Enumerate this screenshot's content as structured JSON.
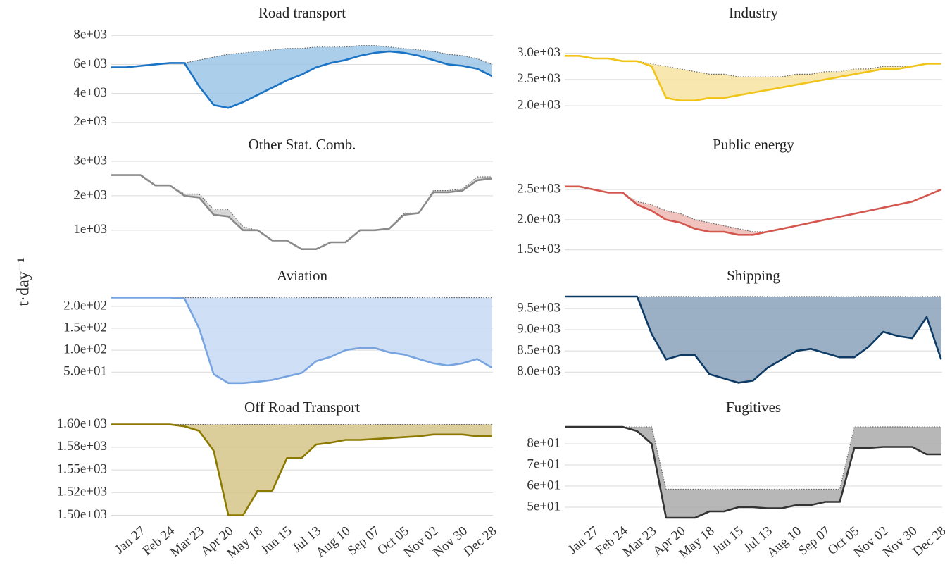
{
  "ylabel": "t·day⁻¹",
  "chart_data": [
    {
      "type": "line",
      "title": "Road transport",
      "color": "#1a73c4",
      "fill": "#9cc7e8",
      "x": [
        1,
        15,
        29,
        43,
        57,
        71,
        85,
        99,
        113,
        127,
        141,
        155,
        169,
        183,
        197,
        211,
        225,
        239,
        253,
        267,
        281,
        295,
        309,
        323,
        337,
        351,
        365
      ],
      "values": [
        5800,
        5800,
        5900,
        6000,
        6100,
        6100,
        4500,
        3200,
        3000,
        3400,
        3900,
        4400,
        4900,
        5300,
        5800,
        6100,
        6300,
        6600,
        6800,
        6900,
        6800,
        6600,
        6300,
        6000,
        5900,
        5700,
        5200
      ],
      "baseline_values": [
        5800,
        5800,
        5900,
        6000,
        6100,
        6100,
        6300,
        6500,
        6700,
        6800,
        6900,
        7000,
        7100,
        7100,
        7200,
        7200,
        7200,
        7300,
        7300,
        7200,
        7100,
        7000,
        6900,
        6700,
        6600,
        6400,
        6000
      ],
      "xlim": [
        1,
        366
      ],
      "ylim": [
        1700,
        8400
      ],
      "yticks": [
        {
          "value": 2000,
          "label": "2e+03"
        },
        {
          "value": 4000,
          "label": "4e+03"
        },
        {
          "value": 6000,
          "label": "6e+03"
        },
        {
          "value": 8000,
          "label": "8e+03"
        }
      ],
      "grid": true
    },
    {
      "type": "line",
      "title": "Industry",
      "color": "#f0c419",
      "fill": "#f7e3a0",
      "x": [
        1,
        15,
        29,
        43,
        57,
        71,
        85,
        99,
        113,
        127,
        141,
        155,
        169,
        183,
        197,
        211,
        225,
        239,
        253,
        267,
        281,
        295,
        309,
        323,
        337,
        351,
        365
      ],
      "values": [
        2950,
        2950,
        2900,
        2900,
        2850,
        2850,
        2750,
        2150,
        2100,
        2100,
        2150,
        2150,
        2200,
        2250,
        2300,
        2350,
        2400,
        2450,
        2500,
        2550,
        2600,
        2650,
        2700,
        2700,
        2750,
        2800,
        2800
      ],
      "baseline_values": [
        2950,
        2950,
        2900,
        2900,
        2850,
        2850,
        2800,
        2750,
        2700,
        2650,
        2600,
        2600,
        2550,
        2550,
        2550,
        2550,
        2600,
        2600,
        2650,
        2650,
        2700,
        2700,
        2750,
        2750,
        2750,
        2800,
        2800
      ],
      "xlim": [
        1,
        366
      ],
      "ylim": [
        1600,
        3450
      ],
      "yticks": [
        {
          "value": 2000,
          "label": "2.0e+03"
        },
        {
          "value": 2500,
          "label": "2.5e+03"
        },
        {
          "value": 3000,
          "label": "3.0e+03"
        }
      ],
      "grid": true
    },
    {
      "type": "line",
      "title": "Other Stat. Comb.",
      "color": "#8a8a8a",
      "fill": "#d0d0d0",
      "x": [
        1,
        15,
        29,
        43,
        57,
        71,
        85,
        99,
        113,
        127,
        141,
        155,
        169,
        183,
        197,
        211,
        225,
        239,
        253,
        267,
        281,
        295,
        309,
        323,
        337,
        351,
        365
      ],
      "values": [
        2600,
        2600,
        2600,
        2300,
        2300,
        2000,
        1950,
        1450,
        1400,
        1000,
        1000,
        700,
        700,
        450,
        450,
        650,
        650,
        1000,
        1000,
        1050,
        1450,
        1500,
        2100,
        2100,
        2150,
        2450,
        2500
      ],
      "baseline_values": [
        2600,
        2600,
        2600,
        2300,
        2300,
        2050,
        2050,
        1600,
        1600,
        1100,
        1000,
        700,
        700,
        450,
        450,
        650,
        650,
        1000,
        1000,
        1050,
        1500,
        1500,
        2150,
        2150,
        2200,
        2550,
        2550
      ],
      "xlim": [
        1,
        366
      ],
      "ylim": [
        220,
        3020
      ],
      "yticks": [
        {
          "value": 1000,
          "label": "1e+03"
        },
        {
          "value": 2000,
          "label": "2e+03"
        },
        {
          "value": 3000,
          "label": "3e+03"
        }
      ],
      "grid": true
    },
    {
      "type": "line",
      "title": "Public energy",
      "color": "#d4574f",
      "fill": "#eeb9b4",
      "x": [
        1,
        15,
        29,
        43,
        57,
        71,
        85,
        99,
        113,
        127,
        141,
        155,
        169,
        183,
        197,
        211,
        225,
        239,
        253,
        267,
        281,
        295,
        309,
        323,
        337,
        351,
        365
      ],
      "values": [
        2550,
        2550,
        2500,
        2450,
        2450,
        2250,
        2150,
        2000,
        1950,
        1850,
        1800,
        1800,
        1750,
        1750,
        1800,
        1850,
        1900,
        1950,
        2000,
        2050,
        2100,
        2150,
        2200,
        2250,
        2300,
        2400,
        2500
      ],
      "baseline_values": [
        2550,
        2550,
        2500,
        2450,
        2450,
        2300,
        2250,
        2150,
        2100,
        2000,
        1950,
        1900,
        1850,
        1800,
        1800,
        1850,
        1900,
        1950,
        2000,
        2050,
        2100,
        2150,
        2200,
        2250,
        2300,
        2400,
        2500
      ],
      "xlim": [
        1,
        366
      ],
      "ylim": [
        1380,
        2980
      ],
      "yticks": [
        {
          "value": 1500,
          "label": "1.5e+03"
        },
        {
          "value": 2000,
          "label": "2.0e+03"
        },
        {
          "value": 2500,
          "label": "2.5e+03"
        }
      ],
      "grid": true
    },
    {
      "type": "line",
      "title": "Aviation",
      "color": "#77a4e0",
      "fill": "#c7d9f3",
      "x": [
        1,
        15,
        29,
        43,
        57,
        71,
        85,
        99,
        113,
        127,
        141,
        155,
        169,
        183,
        197,
        211,
        225,
        239,
        253,
        267,
        281,
        295,
        309,
        323,
        337,
        351,
        365
      ],
      "values": [
        220,
        220,
        220,
        220,
        220,
        218,
        150,
        45,
        25,
        25,
        28,
        32,
        40,
        48,
        75,
        85,
        100,
        105,
        105,
        95,
        90,
        80,
        70,
        65,
        70,
        80,
        60
      ],
      "baseline_values": [
        220,
        220,
        220,
        220,
        220,
        220,
        220,
        220,
        220,
        220,
        220,
        220,
        220,
        220,
        220,
        220,
        220,
        220,
        220,
        220,
        220,
        220,
        220,
        220,
        220,
        220,
        220
      ],
      "xlim": [
        1,
        366
      ],
      "ylim": [
        15,
        232
      ],
      "yticks": [
        {
          "value": 50,
          "label": "5.0e+01"
        },
        {
          "value": 100,
          "label": "1.0e+02"
        },
        {
          "value": 150,
          "label": "1.5e+02"
        },
        {
          "value": 200,
          "label": "2.0e+02"
        }
      ],
      "grid": true
    },
    {
      "type": "line",
      "title": "Shipping",
      "color": "#0c3a64",
      "fill": "#8aa2ba",
      "x": [
        1,
        15,
        29,
        43,
        57,
        71,
        85,
        99,
        113,
        127,
        141,
        155,
        169,
        183,
        197,
        211,
        225,
        239,
        253,
        267,
        281,
        295,
        309,
        323,
        337,
        351,
        365
      ],
      "values": [
        9780,
        9780,
        9780,
        9780,
        9780,
        9780,
        8900,
        8300,
        8400,
        8400,
        7950,
        7850,
        7750,
        7800,
        8100,
        8300,
        8500,
        8550,
        8450,
        8350,
        8350,
        8600,
        8950,
        8850,
        8800,
        9300,
        8300
      ],
      "baseline_values": [
        9780,
        9780,
        9780,
        9780,
        9780,
        9780,
        9780,
        9780,
        9780,
        9780,
        9780,
        9780,
        9780,
        9780,
        9780,
        9780,
        9780,
        9780,
        9780,
        9780,
        9780,
        9780,
        9780,
        9780,
        9780,
        9780,
        9780
      ],
      "xlim": [
        1,
        366
      ],
      "ylim": [
        7640,
        9880
      ],
      "yticks": [
        {
          "value": 8000,
          "label": "8.0e+03"
        },
        {
          "value": 8500,
          "label": "8.5e+03"
        },
        {
          "value": 9000,
          "label": "9.0e+03"
        },
        {
          "value": 9500,
          "label": "9.5e+03"
        }
      ],
      "grid": true
    },
    {
      "type": "line",
      "title": "Off Road Transport",
      "color": "#8c7a00",
      "fill": "#d6c58a",
      "x": [
        1,
        15,
        29,
        43,
        57,
        71,
        85,
        99,
        113,
        127,
        141,
        155,
        169,
        183,
        197,
        211,
        225,
        239,
        253,
        267,
        281,
        295,
        309,
        323,
        337,
        351,
        365
      ],
      "values": [
        1600,
        1600,
        1600,
        1600,
        1600,
        1598,
        1593,
        1571,
        1500,
        1500,
        1527,
        1527,
        1563,
        1563,
        1578,
        1580,
        1583,
        1583,
        1584,
        1585,
        1586,
        1587,
        1589,
        1589,
        1589,
        1587,
        1587
      ],
      "baseline_values": [
        1600,
        1600,
        1600,
        1600,
        1600,
        1600,
        1600,
        1600,
        1600,
        1600,
        1600,
        1600,
        1600,
        1600,
        1600,
        1600,
        1600,
        1600,
        1600,
        1600,
        1600,
        1600,
        1600,
        1600,
        1600,
        1600,
        1600
      ],
      "xlim": [
        1,
        366
      ],
      "ylim": [
        1495,
        1602
      ],
      "yticks": [
        {
          "value": 1500,
          "label": "1.50e+03"
        },
        {
          "value": 1525,
          "label": "1.52e+03"
        },
        {
          "value": 1550,
          "label": "1.55e+03"
        },
        {
          "value": 1575,
          "label": "1.58e+03"
        },
        {
          "value": 1600,
          "label": "1.60e+03"
        }
      ],
      "xticks": [
        {
          "value": 27,
          "label": "Jan 27"
        },
        {
          "value": 55,
          "label": "Feb 24"
        },
        {
          "value": 83,
          "label": "Mar 23"
        },
        {
          "value": 111,
          "label": "Apr 20"
        },
        {
          "value": 139,
          "label": "May 18"
        },
        {
          "value": 167,
          "label": "Jun 15"
        },
        {
          "value": 195,
          "label": "Jul 13"
        },
        {
          "value": 223,
          "label": "Aug 10"
        },
        {
          "value": 251,
          "label": "Sep 07"
        },
        {
          "value": 279,
          "label": "Oct 05"
        },
        {
          "value": 307,
          "label": "Nov 02"
        },
        {
          "value": 335,
          "label": "Nov 30"
        },
        {
          "value": 363,
          "label": "Dec 28"
        }
      ],
      "grid": true
    },
    {
      "type": "line",
      "title": "Fugitives",
      "color": "#333333",
      "fill": "#aaaaaa",
      "x": [
        1,
        15,
        29,
        43,
        57,
        71,
        85,
        99,
        113,
        127,
        141,
        155,
        169,
        183,
        197,
        211,
        225,
        239,
        253,
        267,
        281,
        295,
        309,
        323,
        337,
        351,
        365
      ],
      "values": [
        88,
        88,
        88,
        88,
        88,
        86,
        80,
        45,
        45,
        45,
        48,
        48,
        50,
        50,
        49.5,
        49.5,
        51,
        51,
        52.5,
        52.5,
        78,
        78,
        78.5,
        78.5,
        78.5,
        75,
        75
      ],
      "baseline_values": [
        88,
        88,
        88,
        88,
        88,
        88,
        88,
        58.5,
        58.5,
        58.5,
        58.5,
        58.5,
        58.5,
        58.5,
        58.5,
        58.5,
        58.5,
        58.5,
        58.5,
        58.5,
        88,
        88,
        88,
        88,
        88,
        88,
        88
      ],
      "xlim": [
        1,
        366
      ],
      "ylim": [
        44,
        90
      ],
      "yticks": [
        {
          "value": 50,
          "label": "5e+01"
        },
        {
          "value": 60,
          "label": "6e+01"
        },
        {
          "value": 70,
          "label": "7e+01"
        },
        {
          "value": 80,
          "label": "8e+01"
        }
      ],
      "xticks": [
        {
          "value": 27,
          "label": "Jan 27"
        },
        {
          "value": 55,
          "label": "Feb 24"
        },
        {
          "value": 83,
          "label": "Mar 23"
        },
        {
          "value": 111,
          "label": "Apr 20"
        },
        {
          "value": 139,
          "label": "May 18"
        },
        {
          "value": 167,
          "label": "Jun 15"
        },
        {
          "value": 195,
          "label": "Jul 13"
        },
        {
          "value": 223,
          "label": "Aug 10"
        },
        {
          "value": 251,
          "label": "Sep 07"
        },
        {
          "value": 279,
          "label": "Oct 05"
        },
        {
          "value": 307,
          "label": "Nov 02"
        },
        {
          "value": 335,
          "label": "Nov 30"
        },
        {
          "value": 363,
          "label": "Dec 28"
        }
      ],
      "grid": true
    }
  ]
}
